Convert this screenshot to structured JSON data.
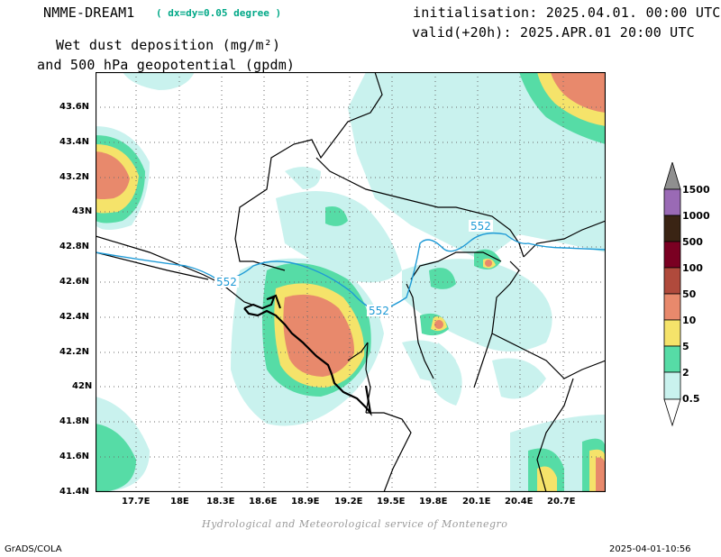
{
  "header": {
    "model": "NMME-DREAM1",
    "resolution": "( dx=dy=0.05 degree )",
    "title_line1": "Wet dust deposition (mg/m²)",
    "title_line2": "and 500 hPa geopotential (gpdm)",
    "init": "initialisation: 2025.04.01. 00:00 UTC",
    "valid": "valid(+20h): 2025.APR.01 20:00 UTC"
  },
  "map": {
    "lat_labels": [
      "43.6N",
      "43.4N",
      "43.2N",
      "43N",
      "42.8N",
      "42.6N",
      "42.4N",
      "42.2N",
      "42N",
      "41.8N",
      "41.6N",
      "41.4N"
    ],
    "lon_labels": [
      "17.7E",
      "18E",
      "18.3E",
      "18.6E",
      "18.9E",
      "19.2E",
      "19.5E",
      "19.8E",
      "20.1E",
      "20.4E",
      "20.7E"
    ],
    "contour_labels": [
      "552",
      "552",
      "552"
    ],
    "credit": "Hydrological and Meteorological service of Montenegro"
  },
  "colorbar": {
    "levels": [
      "1500",
      "1000",
      "500",
      "100",
      "50",
      "10",
      "5",
      "2",
      "0.5"
    ],
    "colors": [
      "#9a6ab5",
      "#3a2414",
      "#7a0022",
      "#b04a3c",
      "#e8896c",
      "#f5e36a",
      "#56dca6",
      "#c9f2ee"
    ]
  },
  "footer": {
    "left": "GrADS/COLA",
    "right": "2025-04-01-10:56"
  }
}
